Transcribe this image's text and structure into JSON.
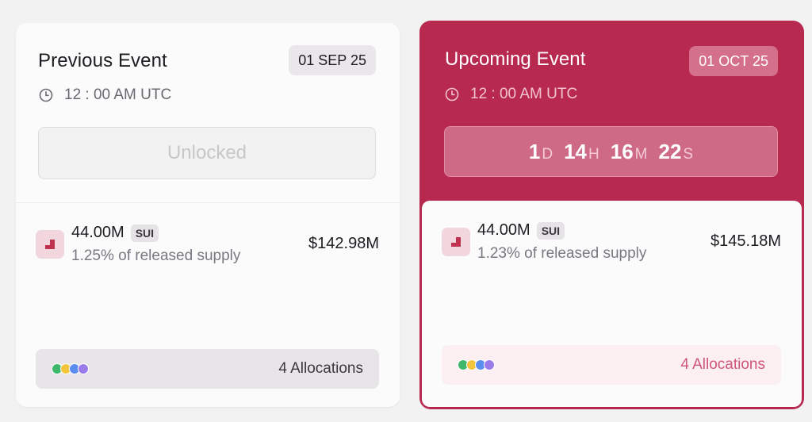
{
  "events": {
    "previous": {
      "title": "Previous Event",
      "date": "01 SEP 25",
      "time": "12 : 00 AM UTC",
      "status": "Unlocked",
      "amount": "44.00M",
      "symbol": "SUI",
      "supply": "1.25% of released supply",
      "usd": "$142.98M",
      "allocations": "4 Allocations"
    },
    "upcoming": {
      "title": "Upcoming Event",
      "date": "01 OCT 25",
      "time": "12 : 00 AM UTC",
      "countdown": {
        "days": "1",
        "days_unit": "D",
        "hours": "14",
        "hours_unit": "H",
        "minutes": "16",
        "minutes_unit": "M",
        "seconds": "22",
        "seconds_unit": "S"
      },
      "amount": "44.00M",
      "symbol": "SUI",
      "supply": "1.23% of released supply",
      "usd": "$145.18M",
      "allocations": "4 Allocations"
    }
  },
  "icons": {
    "clock": "clock-icon",
    "token": "token-icon"
  },
  "colors": {
    "accent": "#b8294f",
    "allocation_dots": [
      "#3fb86b",
      "#f2c53d",
      "#5b8def",
      "#9b7bea"
    ]
  }
}
